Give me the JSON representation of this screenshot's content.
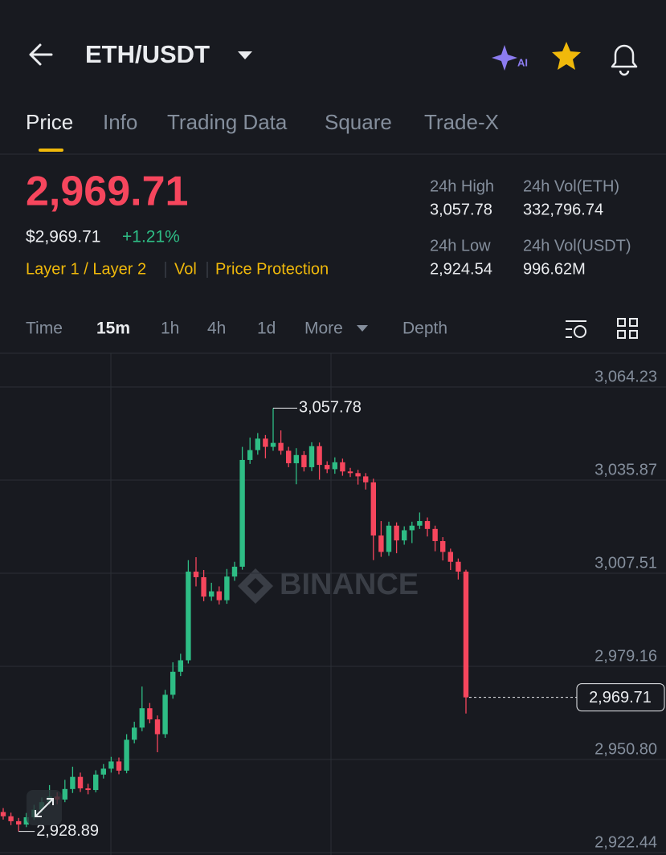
{
  "header": {
    "pair": "ETH/USDT",
    "ai_badge": "AI"
  },
  "tabs": [
    "Price",
    "Info",
    "Trading Data",
    "Square",
    "Trade-X"
  ],
  "ticker": {
    "price": "2,969.71",
    "usd_price": "$2,969.71",
    "change": "+1.21%",
    "tags": [
      "Layer 1 / Layer 2",
      "Vol",
      "Price Protection"
    ],
    "stats": [
      {
        "label": "24h High",
        "value": "3,057.78"
      },
      {
        "label": "24h Vol(ETH)",
        "value": "332,796.74"
      },
      {
        "label": "24h Low",
        "value": "2,924.54"
      },
      {
        "label": "24h Vol(USDT)",
        "value": "996.62M"
      }
    ]
  },
  "intervals": [
    "Time",
    "15m",
    "1h",
    "4h",
    "1d",
    "More"
  ],
  "depth": "Depth",
  "chart_data": {
    "type": "candlestick",
    "watermark": "BINANCE",
    "up_color": "#2ebd85",
    "down_color": "#f6465d",
    "grid": true,
    "ylim": [
      2921.71,
      3074.5
    ],
    "yticks": [
      {
        "value": 3064.23,
        "label": "3,064.23"
      },
      {
        "value": 3035.87,
        "label": "3,035.87"
      },
      {
        "value": 3007.51,
        "label": "3,007.51"
      },
      {
        "value": 2979.16,
        "label": "2,979.16"
      },
      {
        "value": 2950.8,
        "label": "2,950.80"
      },
      {
        "value": 2922.44,
        "label": "2,922.44"
      }
    ],
    "open": [
      2934.8,
      2933.5,
      2932.0,
      2931.0,
      2933.2,
      2935.5,
      2937.8,
      2939.5,
      2938.6,
      2941.8,
      2945.5,
      2942.0,
      2941.5,
      2946.2,
      2948.0,
      2950.2,
      2947.4,
      2956.8,
      2960.5,
      2966.4,
      2963.0,
      2958.5,
      2970.5,
      2977.5,
      2981.0,
      3008.0,
      3006.3,
      3000.4,
      3002.0,
      2999.3,
      3006.5,
      3009.5,
      3042.0,
      3045.0,
      3048.5,
      3046.0,
      3047.2,
      3044.8,
      3041.0,
      3043.5,
      3039.8,
      3046.2,
      3040.5,
      3039.2,
      3041.3,
      3038.5,
      3038.0,
      3037.0,
      3035.2,
      3019.0,
      3014.0,
      3022.0,
      3017.5,
      3020.6,
      3022.0,
      3023.4,
      3021.0,
      3017.3,
      3014.0,
      3011.0,
      3008.0
    ],
    "high": [
      2936.0,
      2934.6,
      2933.0,
      2934.5,
      2937.0,
      2939.2,
      2943.0,
      2940.8,
      2944.6,
      2948.6,
      2946.8,
      2943.4,
      2947.5,
      2949.4,
      2951.6,
      2951.4,
      2958.5,
      2962.3,
      2973.0,
      2968.0,
      2964.2,
      2972.0,
      2980.4,
      2983.0,
      3011.5,
      3012.4,
      3008.5,
      3004.6,
      3003.5,
      3008.8,
      3011.0,
      3046.0,
      3048.8,
      3050.2,
      3049.6,
      3057.78,
      3051.0,
      3046.0,
      3045.6,
      3044.7,
      3047.4,
      3047.3,
      3041.6,
      3042.8,
      3042.4,
      3039.6,
      3039.0,
      3038.0,
      3036.3,
      3023.4,
      3023.2,
      3023.0,
      3021.8,
      3023.2,
      3026.0,
      3024.5,
      3022.0,
      3018.5,
      3015.0,
      3012.0,
      3008.6
    ],
    "low": [
      2932.5,
      2930.8,
      2928.89,
      2930.2,
      2932.4,
      2934.6,
      2936.9,
      2937.2,
      2937.8,
      2940.6,
      2940.9,
      2940.2,
      2940.8,
      2945.0,
      2946.8,
      2946.3,
      2946.6,
      2955.7,
      2959.4,
      2961.8,
      2953.0,
      2957.4,
      2969.3,
      2976.2,
      2980.0,
      3003.5,
      2999.0,
      2999.1,
      2998.0,
      2998.2,
      3005.2,
      3008.6,
      3040.8,
      3043.6,
      3042.5,
      3044.8,
      3043.6,
      3039.8,
      3034.6,
      3038.5,
      3038.6,
      3036.0,
      3038.0,
      3037.8,
      3037.2,
      3036.8,
      3034.5,
      3033.0,
      3011.5,
      3012.5,
      3012.8,
      3013.6,
      3016.2,
      3016.7,
      3021.0,
      3018.7,
      3014.2,
      3011.4,
      3008.5,
      3005.6,
      2964.8
    ],
    "close": [
      2933.5,
      2932.0,
      2931.0,
      2933.2,
      2935.5,
      2937.8,
      2939.5,
      2938.6,
      2941.8,
      2945.5,
      2942.0,
      2941.5,
      2946.2,
      2948.0,
      2950.2,
      2947.4,
      2956.8,
      2960.5,
      2966.4,
      2963.0,
      2958.5,
      2970.5,
      2977.5,
      2981.0,
      3008.0,
      3006.3,
      3000.4,
      3002.0,
      2999.3,
      3006.5,
      3009.5,
      3042.0,
      3045.0,
      3048.5,
      3046.0,
      3047.2,
      3044.8,
      3041.0,
      3043.5,
      3039.8,
      3046.2,
      3040.5,
      3039.2,
      3041.3,
      3038.5,
      3038.0,
      3037.0,
      3035.2,
      3019.0,
      3014.0,
      3022.0,
      3017.5,
      3020.6,
      3022.0,
      3023.4,
      3021.0,
      3017.3,
      3014.0,
      3011.0,
      3008.0,
      2969.71
    ],
    "high_label": {
      "value": 3057.78,
      "label": "3,057.78"
    },
    "low_label": {
      "value": 2928.89,
      "label": "2,928.89"
    },
    "last_price": {
      "value": 2969.71,
      "label": "2,969.71"
    }
  }
}
